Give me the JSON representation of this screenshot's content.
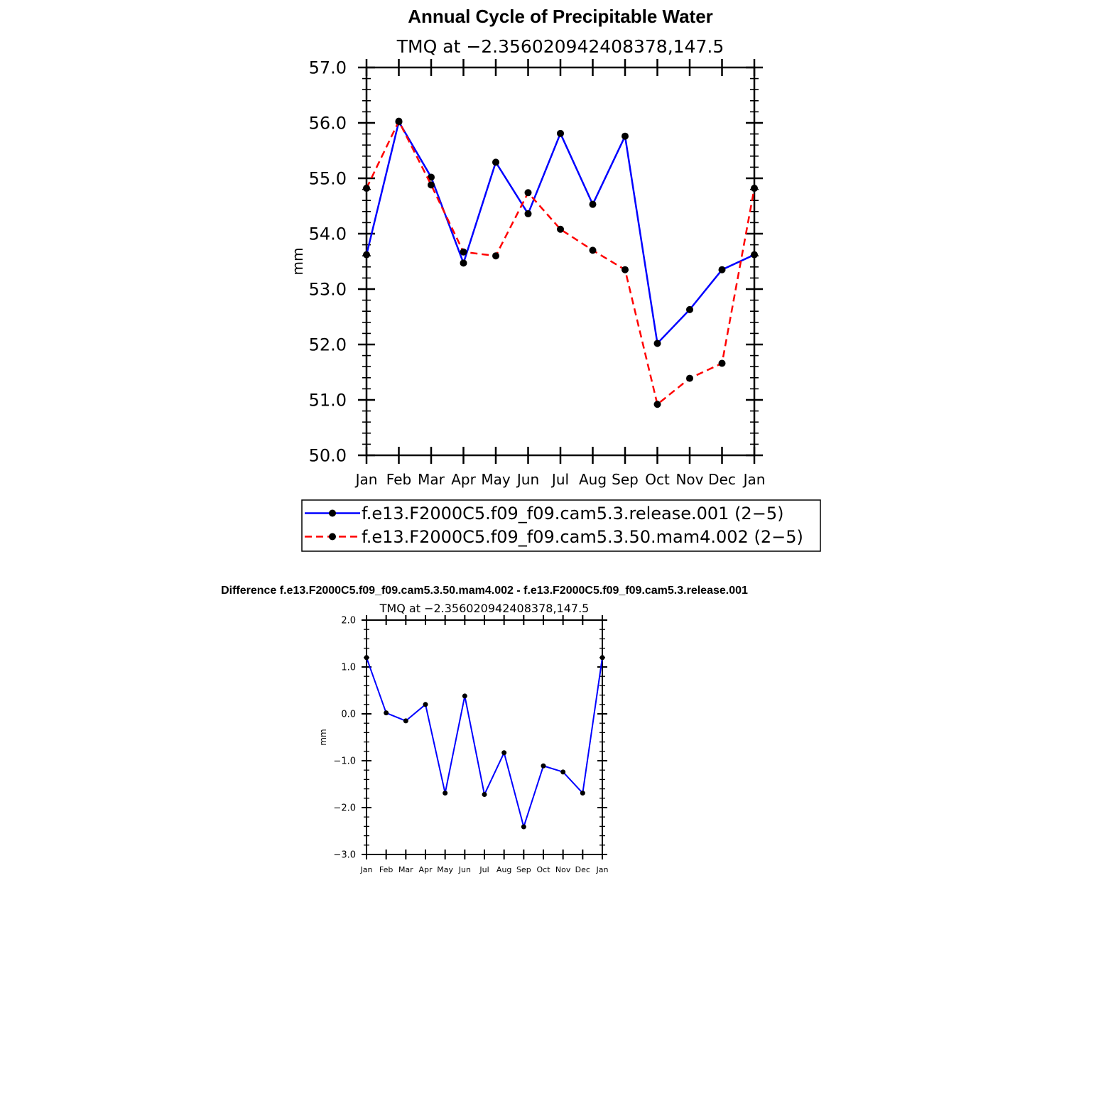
{
  "chart_data": [
    {
      "type": "line",
      "title": "Annual Cycle of Precipitable Water",
      "subtitle": "TMQ at −2.356020942408378,147.5",
      "xlabel": "",
      "ylabel": "mm",
      "categories": [
        "Jan",
        "Feb",
        "Mar",
        "Apr",
        "May",
        "Jun",
        "Jul",
        "Aug",
        "Sep",
        "Oct",
        "Nov",
        "Dec",
        "Jan"
      ],
      "ylim": [
        50.0,
        57.0
      ],
      "yticks": [
        "50.0",
        "51.0",
        "52.0",
        "53.0",
        "54.0",
        "55.0",
        "56.0",
        "57.0"
      ],
      "series": [
        {
          "name": "f.e13.F2000C5.f09_f09.cam5.3.release.001 (2−5)",
          "color": "#0000ff",
          "dash": "solid",
          "values": [
            53.62,
            56.02,
            55.02,
            53.47,
            55.29,
            54.36,
            55.81,
            54.53,
            55.76,
            52.02,
            52.63,
            53.35,
            53.62
          ]
        },
        {
          "name": "f.e13.F2000C5.f09_f09.cam5.3.50.mam4.002 (2−5)",
          "color": "#ff0000",
          "dash": "dashed",
          "values": [
            54.82,
            56.03,
            54.88,
            53.67,
            53.6,
            54.74,
            54.08,
            53.7,
            53.35,
            50.92,
            51.39,
            51.66,
            54.82
          ]
        }
      ],
      "legend": "bottom"
    },
    {
      "type": "line",
      "title": "Difference f.e13.F2000C5.f09_f09.cam5.3.50.mam4.002 - f.e13.F2000C5.f09_f09.cam5.3.release.001",
      "subtitle": "TMQ at −2.356020942408378,147.5",
      "xlabel": "",
      "ylabel": "mm",
      "categories": [
        "Jan",
        "Feb",
        "Mar",
        "Apr",
        "May",
        "Jun",
        "Jul",
        "Aug",
        "Sep",
        "Oct",
        "Nov",
        "Dec",
        "Jan"
      ],
      "ylim": [
        -3.0,
        2.0
      ],
      "yticks": [
        "−3.0",
        "−2.0",
        "−1.0",
        "0.0",
        "1.0",
        "2.0"
      ],
      "series": [
        {
          "color": "#0000ff",
          "dash": "solid",
          "values": [
            1.2,
            0.02,
            -0.15,
            0.2,
            -1.69,
            0.38,
            -1.72,
            -0.83,
            -2.41,
            -1.11,
            -1.24,
            -1.69,
            1.2
          ]
        }
      ]
    }
  ]
}
